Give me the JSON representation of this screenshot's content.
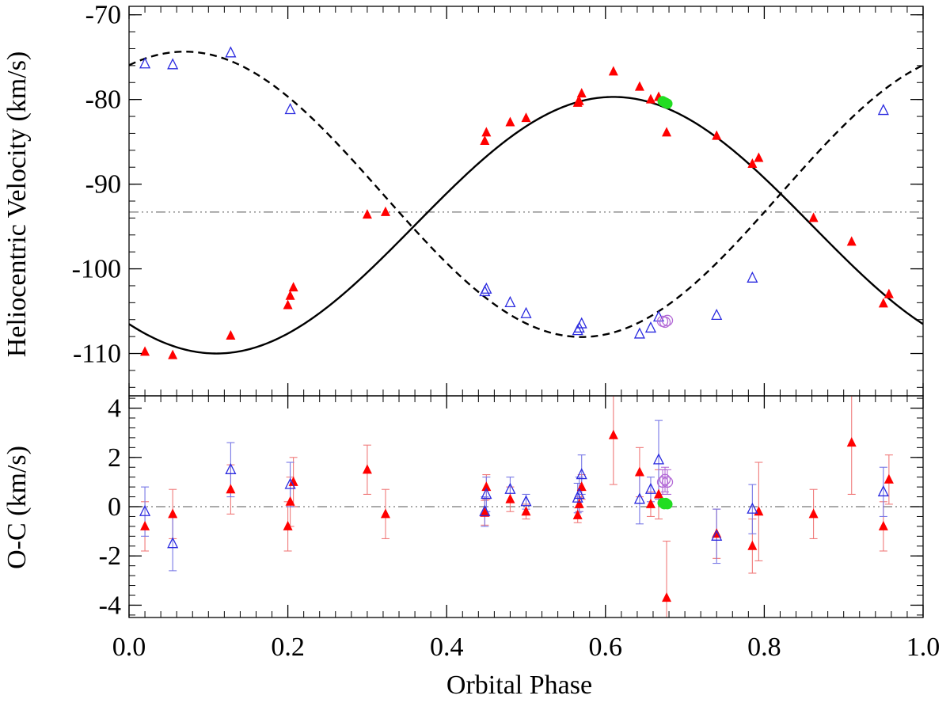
{
  "chart_data": {
    "type": "scatter",
    "title": "",
    "xlabel": "Orbital Phase",
    "xlim": [
      0.0,
      1.0
    ],
    "xticks": [
      0.0,
      0.2,
      0.4,
      0.6,
      0.8,
      1.0
    ],
    "xtick_labels": [
      "0.0",
      "0.2",
      "0.4",
      "0.6",
      "0.8",
      "1.0"
    ],
    "colors": {
      "primary": "#ff0000",
      "secondary": "#2a2adf",
      "green": "#22dd22",
      "purple": "#b36ad6",
      "error_red": "#f07a7a",
      "error_blue": "#7777e6",
      "dashdot": "#777777"
    },
    "panels": [
      {
        "name": "radial-velocity",
        "ylabel": "Heliocentric Velocity (km/s)",
        "ylim": [
          -115,
          -69
        ],
        "yticks": [
          -110,
          -100,
          -90,
          -80,
          -70
        ],
        "ytick_labels": [
          "-110",
          "-100",
          "-90",
          "-80",
          "-70"
        ],
        "systemic_velocity": -93.3,
        "model_curves": [
          {
            "name": "primary-orbit",
            "style": "solid",
            "gamma": -94.85,
            "K": 15.15,
            "phase_of_max": 0.61
          },
          {
            "name": "secondary-orbit",
            "style": "dashed",
            "gamma": -91.2,
            "K": 16.85,
            "phase_of_max": 0.07
          }
        ],
        "series": [
          {
            "name": "primary-filled-triangles",
            "marker": "filled-triangle",
            "color": "#ff0000",
            "x": [
              0.02,
              0.055,
              0.128,
              0.2,
              0.203,
              0.207,
              0.3,
              0.323,
              0.448,
              0.45,
              0.48,
              0.5,
              0.565,
              0.567,
              0.57,
              0.61,
              0.643,
              0.657,
              0.667,
              0.677,
              0.74,
              0.785,
              0.793,
              0.862,
              0.91,
              0.95,
              0.957
            ],
            "y": [
              -109.8,
              -110.2,
              -107.9,
              -104.3,
              -103.2,
              -102.2,
              -93.6,
              -93.3,
              -84.9,
              -83.9,
              -82.7,
              -82.2,
              -80.4,
              -80.2,
              -79.3,
              -76.7,
              -78.5,
              -80.0,
              -79.7,
              -83.9,
              -84.3,
              -87.6,
              -86.9,
              -94.0,
              -96.8,
              -104.1,
              -103.0
            ]
          },
          {
            "name": "secondary-open-triangles",
            "marker": "open-triangle",
            "color": "#2a2adf",
            "x": [
              0.02,
              0.055,
              0.128,
              0.203,
              0.448,
              0.45,
              0.48,
              0.5,
              0.565,
              0.567,
              0.57,
              0.643,
              0.657,
              0.667,
              0.74,
              0.785,
              0.95
            ],
            "y": [
              -75.8,
              -75.9,
              -74.5,
              -81.2,
              -102.7,
              -102.4,
              -104.0,
              -105.3,
              -107.3,
              -107.0,
              -106.5,
              -107.7,
              -107.0,
              -105.7,
              -105.5,
              -101.1,
              -81.3
            ]
          },
          {
            "name": "green-filled-circles",
            "marker": "filled-circle",
            "color": "#22dd22",
            "x": [
              0.672,
              0.674,
              0.676,
              0.678
            ],
            "y": [
              -80.2,
              -80.3,
              -80.4,
              -80.5
            ]
          },
          {
            "name": "purple-open-circles",
            "marker": "open-circle",
            "color": "#b36ad6",
            "x": [
              0.672,
              0.675,
              0.678
            ],
            "y": [
              -106.2,
              -106.3,
              -106.1
            ]
          }
        ]
      },
      {
        "name": "o-c-residuals",
        "ylabel": "O-C (km/s)",
        "ylim": [
          -4.5,
          4.5
        ],
        "yticks": [
          -4,
          -2,
          0,
          2,
          4
        ],
        "ytick_labels": [
          "-4",
          "-2",
          "0",
          "2",
          "4"
        ],
        "series": [
          {
            "name": "primary-residuals",
            "marker": "filled-triangle",
            "color": "#ff0000",
            "x": [
              0.02,
              0.055,
              0.128,
              0.2,
              0.203,
              0.207,
              0.3,
              0.323,
              0.448,
              0.45,
              0.48,
              0.5,
              0.565,
              0.567,
              0.57,
              0.61,
              0.643,
              0.657,
              0.667,
              0.677,
              0.74,
              0.785,
              0.793,
              0.862,
              0.91,
              0.95,
              0.957
            ],
            "y": [
              -0.8,
              -0.3,
              0.7,
              -0.8,
              0.2,
              1.0,
              1.5,
              -0.3,
              -0.25,
              0.8,
              0.3,
              -0.2,
              -0.35,
              0.1,
              0.8,
              2.9,
              1.4,
              0.1,
              0.5,
              -3.7,
              -1.1,
              -1.6,
              -0.2,
              -0.3,
              2.6,
              -0.8,
              1.1
            ],
            "err": [
              1.0,
              1.0,
              1.0,
              1.0,
              1.0,
              1.0,
              1.0,
              1.0,
              0.5,
              0.5,
              0.5,
              0.3,
              0.3,
              0.3,
              0.5,
              2.0,
              1.0,
              0.5,
              1.0,
              2.3,
              1.0,
              1.1,
              2.0,
              1.0,
              2.1,
              1.0,
              1.0
            ]
          },
          {
            "name": "secondary-residuals",
            "marker": "open-triangle",
            "color": "#2a2adf",
            "x": [
              0.02,
              0.055,
              0.128,
              0.203,
              0.448,
              0.45,
              0.48,
              0.5,
              0.565,
              0.567,
              0.57,
              0.643,
              0.657,
              0.667,
              0.74,
              0.785,
              0.95
            ],
            "y": [
              -0.2,
              -1.5,
              1.5,
              0.9,
              -0.2,
              0.5,
              0.7,
              0.2,
              0.35,
              0.5,
              1.3,
              0.3,
              0.7,
              1.9,
              -1.2,
              -0.1,
              0.6
            ],
            "err": [
              1.0,
              1.1,
              1.1,
              0.9,
              0.6,
              0.7,
              0.5,
              0.3,
              0.6,
              0.7,
              0.8,
              1.0,
              0.5,
              1.6,
              1.1,
              1.0,
              1.0
            ]
          },
          {
            "name": "green-residuals",
            "marker": "filled-circle",
            "color": "#22dd22",
            "x": [
              0.672,
              0.674,
              0.676,
              0.678
            ],
            "y": [
              0.15,
              0.1,
              0.15,
              0.1
            ],
            "err": [
              0,
              0,
              0,
              0
            ]
          },
          {
            "name": "purple-residuals",
            "marker": "open-circle",
            "color": "#b36ad6",
            "x": [
              0.672,
              0.675,
              0.678
            ],
            "y": [
              1.0,
              1.1,
              1.0
            ],
            "err": [
              0.5,
              0.5,
              0.5
            ]
          }
        ]
      }
    ]
  }
}
